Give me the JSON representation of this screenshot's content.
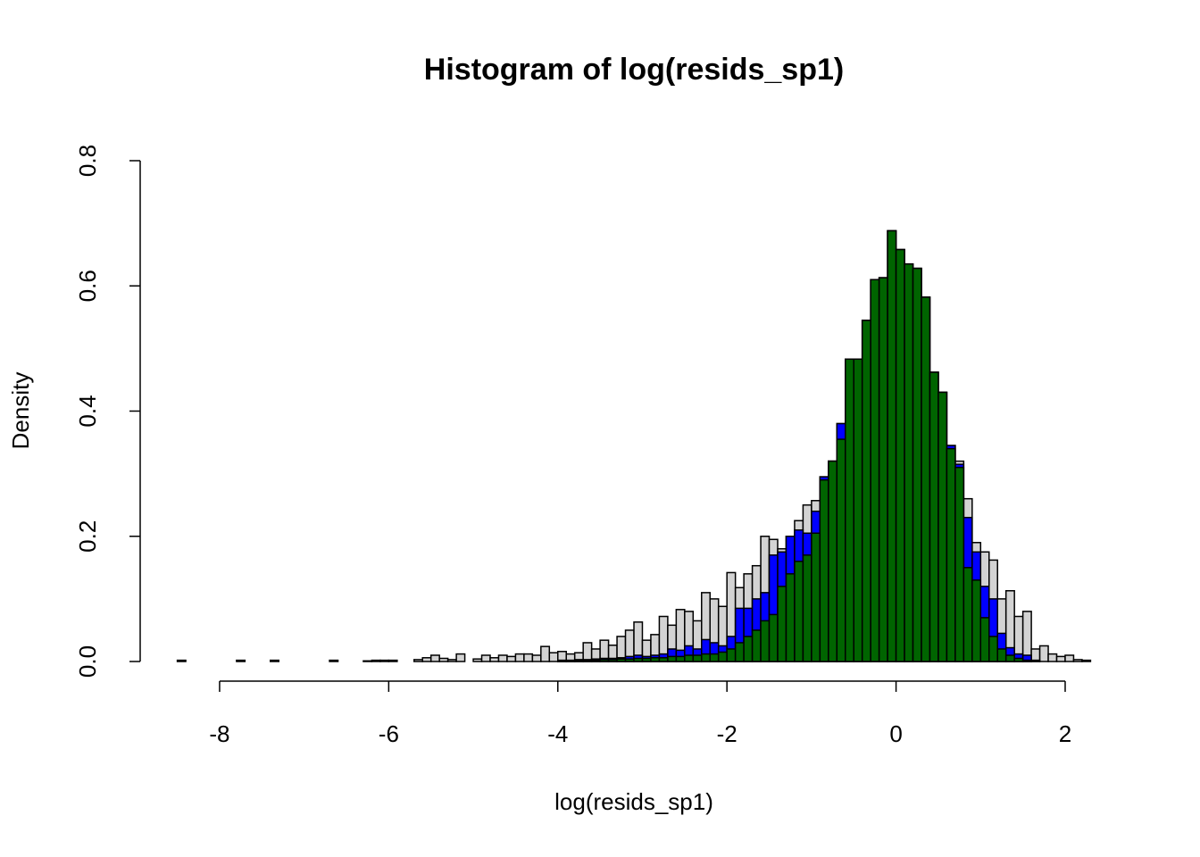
{
  "chart_data": {
    "type": "histogram",
    "title": "Histogram of log(resids_sp1)",
    "x_label": "log(resids_sp1)",
    "y_label": "Density",
    "bins": [
      -8.5,
      -8.4,
      -8.3,
      -8.2,
      -8.1,
      -8,
      -7.9,
      -7.8,
      -7.7,
      -7.6,
      -7.5,
      -7.4,
      -7.3,
      -7.2,
      -7.1,
      -7,
      -6.9,
      -6.8,
      -6.7,
      -6.6,
      -6.5,
      -6.4,
      -6.3,
      -6.2,
      -6.1,
      -6,
      -5.9,
      -5.8,
      -5.7,
      -5.6,
      -5.5,
      -5.4,
      -5.3,
      -5.2,
      -5.1,
      -5,
      -4.9,
      -4.8,
      -4.7,
      -4.6,
      -4.5,
      -4.4,
      -4.3,
      -4.2,
      -4.1,
      -4,
      -3.9,
      -3.8,
      -3.7,
      -3.6,
      -3.5,
      -3.4,
      -3.3,
      -3.2,
      -3.1,
      -3,
      -2.9,
      -2.8,
      -2.7,
      -2.6,
      -2.5,
      -2.4,
      -2.3,
      -2.2,
      -2.1,
      -2,
      -1.9,
      -1.8,
      -1.7,
      -1.6,
      -1.5,
      -1.4,
      -1.3,
      -1.2,
      -1.1,
      -1,
      -0.9,
      -0.8,
      -0.7,
      -0.6,
      -0.5,
      -0.4,
      -0.3,
      -0.2,
      -0.1,
      0,
      0.1,
      0.2,
      0.3,
      0.4,
      0.5,
      0.6,
      0.7,
      0.8,
      0.9,
      1,
      1.1,
      1.2,
      1.3,
      1.4,
      1.5,
      1.6,
      1.7,
      1.8,
      1.9,
      2,
      2.1,
      2.2,
      2.3
    ],
    "series": [
      {
        "color": "#d3d3d3",
        "values": [
          0.002,
          0,
          0,
          0,
          0,
          0,
          0,
          0.002,
          0,
          0,
          0,
          0.002,
          0,
          0,
          0,
          0,
          0,
          0,
          0.002,
          0,
          0,
          0,
          0.001,
          0.002,
          0.002,
          0.002,
          0,
          0,
          0.003,
          0.006,
          0.01,
          0.005,
          0.003,
          0.012,
          0,
          0.004,
          0.01,
          0.006,
          0.01,
          0.008,
          0.012,
          0.012,
          0.01,
          0.024,
          0.014,
          0.016,
          0.012,
          0.014,
          0.03,
          0.02,
          0.034,
          0.026,
          0.04,
          0.05,
          0.063,
          0.034,
          0.043,
          0.072,
          0.058,
          0.083,
          0.08,
          0.065,
          0.11,
          0.1,
          0.088,
          0.142,
          0.118,
          0.14,
          0.153,
          0.2,
          0.195,
          0.18,
          0.2,
          0.225,
          0.25,
          0.257,
          0.295,
          0.32,
          0.38,
          0.483,
          0.483,
          0.545,
          0.61,
          0.613,
          0.688,
          0.658,
          0.635,
          0.628,
          0.582,
          0.462,
          0.43,
          0.345,
          0.32,
          0.26,
          0.19,
          0.175,
          0.162,
          0.1,
          0.113,
          0.072,
          0.08,
          0.02,
          0.025,
          0.012,
          0.008,
          0.01,
          0.003,
          0.002
        ]
      },
      {
        "color": "#0000ff",
        "values": [
          0,
          0,
          0,
          0,
          0,
          0,
          0,
          0,
          0,
          0,
          0,
          0,
          0,
          0,
          0,
          0,
          0,
          0,
          0,
          0,
          0,
          0,
          0,
          0,
          0,
          0,
          0,
          0,
          0,
          0,
          0,
          0,
          0,
          0,
          0,
          0,
          0,
          0,
          0,
          0,
          0,
          0,
          0,
          0,
          0,
          0.002,
          0.002,
          0.003,
          0.003,
          0.004,
          0.005,
          0.005,
          0.006,
          0.008,
          0.01,
          0.008,
          0.01,
          0.012,
          0.02,
          0.018,
          0.025,
          0.02,
          0.035,
          0.03,
          0.025,
          0.04,
          0.085,
          0.085,
          0.1,
          0.11,
          0.17,
          0.175,
          0.2,
          0.21,
          0.205,
          0.24,
          0.295,
          0.32,
          0.38,
          0.483,
          0.483,
          0.545,
          0.61,
          0.613,
          0.688,
          0.658,
          0.635,
          0.628,
          0.582,
          0.462,
          0.43,
          0.345,
          0.315,
          0.23,
          0.175,
          0.12,
          0.1,
          0.045,
          0.022,
          0.012,
          0.01,
          0.002,
          0,
          0,
          0,
          0,
          0,
          0
        ]
      },
      {
        "color": "#006400",
        "values": [
          0,
          0,
          0,
          0,
          0,
          0,
          0,
          0,
          0,
          0,
          0,
          0,
          0,
          0,
          0,
          0,
          0,
          0,
          0,
          0,
          0,
          0,
          0,
          0,
          0,
          0,
          0,
          0,
          0,
          0,
          0,
          0,
          0,
          0,
          0,
          0,
          0,
          0,
          0,
          0,
          0,
          0,
          0,
          0,
          0,
          0.001,
          0.001,
          0.002,
          0.002,
          0.002,
          0.003,
          0.003,
          0.004,
          0.004,
          0.005,
          0.005,
          0.006,
          0.006,
          0.008,
          0.008,
          0.01,
          0.01,
          0.012,
          0.012,
          0.015,
          0.02,
          0.03,
          0.04,
          0.05,
          0.065,
          0.075,
          0.12,
          0.14,
          0.16,
          0.17,
          0.205,
          0.29,
          0.32,
          0.355,
          0.483,
          0.483,
          0.545,
          0.61,
          0.613,
          0.688,
          0.658,
          0.635,
          0.628,
          0.582,
          0.462,
          0.43,
          0.34,
          0.31,
          0.15,
          0.13,
          0.07,
          0.04,
          0.02,
          0.01,
          0.005,
          0.002,
          0,
          0,
          0,
          0,
          0,
          0,
          0
        ]
      }
    ],
    "xlim": [
      -8.5,
      2.3
    ],
    "ylim": [
      0,
      0.8
    ],
    "xticks": [
      -8,
      -6,
      -4,
      -2,
      0,
      2
    ],
    "yticks": [
      {
        "value": 0,
        "label": "0.0"
      },
      0.2,
      0.4,
      0.6,
      0.8
    ]
  }
}
